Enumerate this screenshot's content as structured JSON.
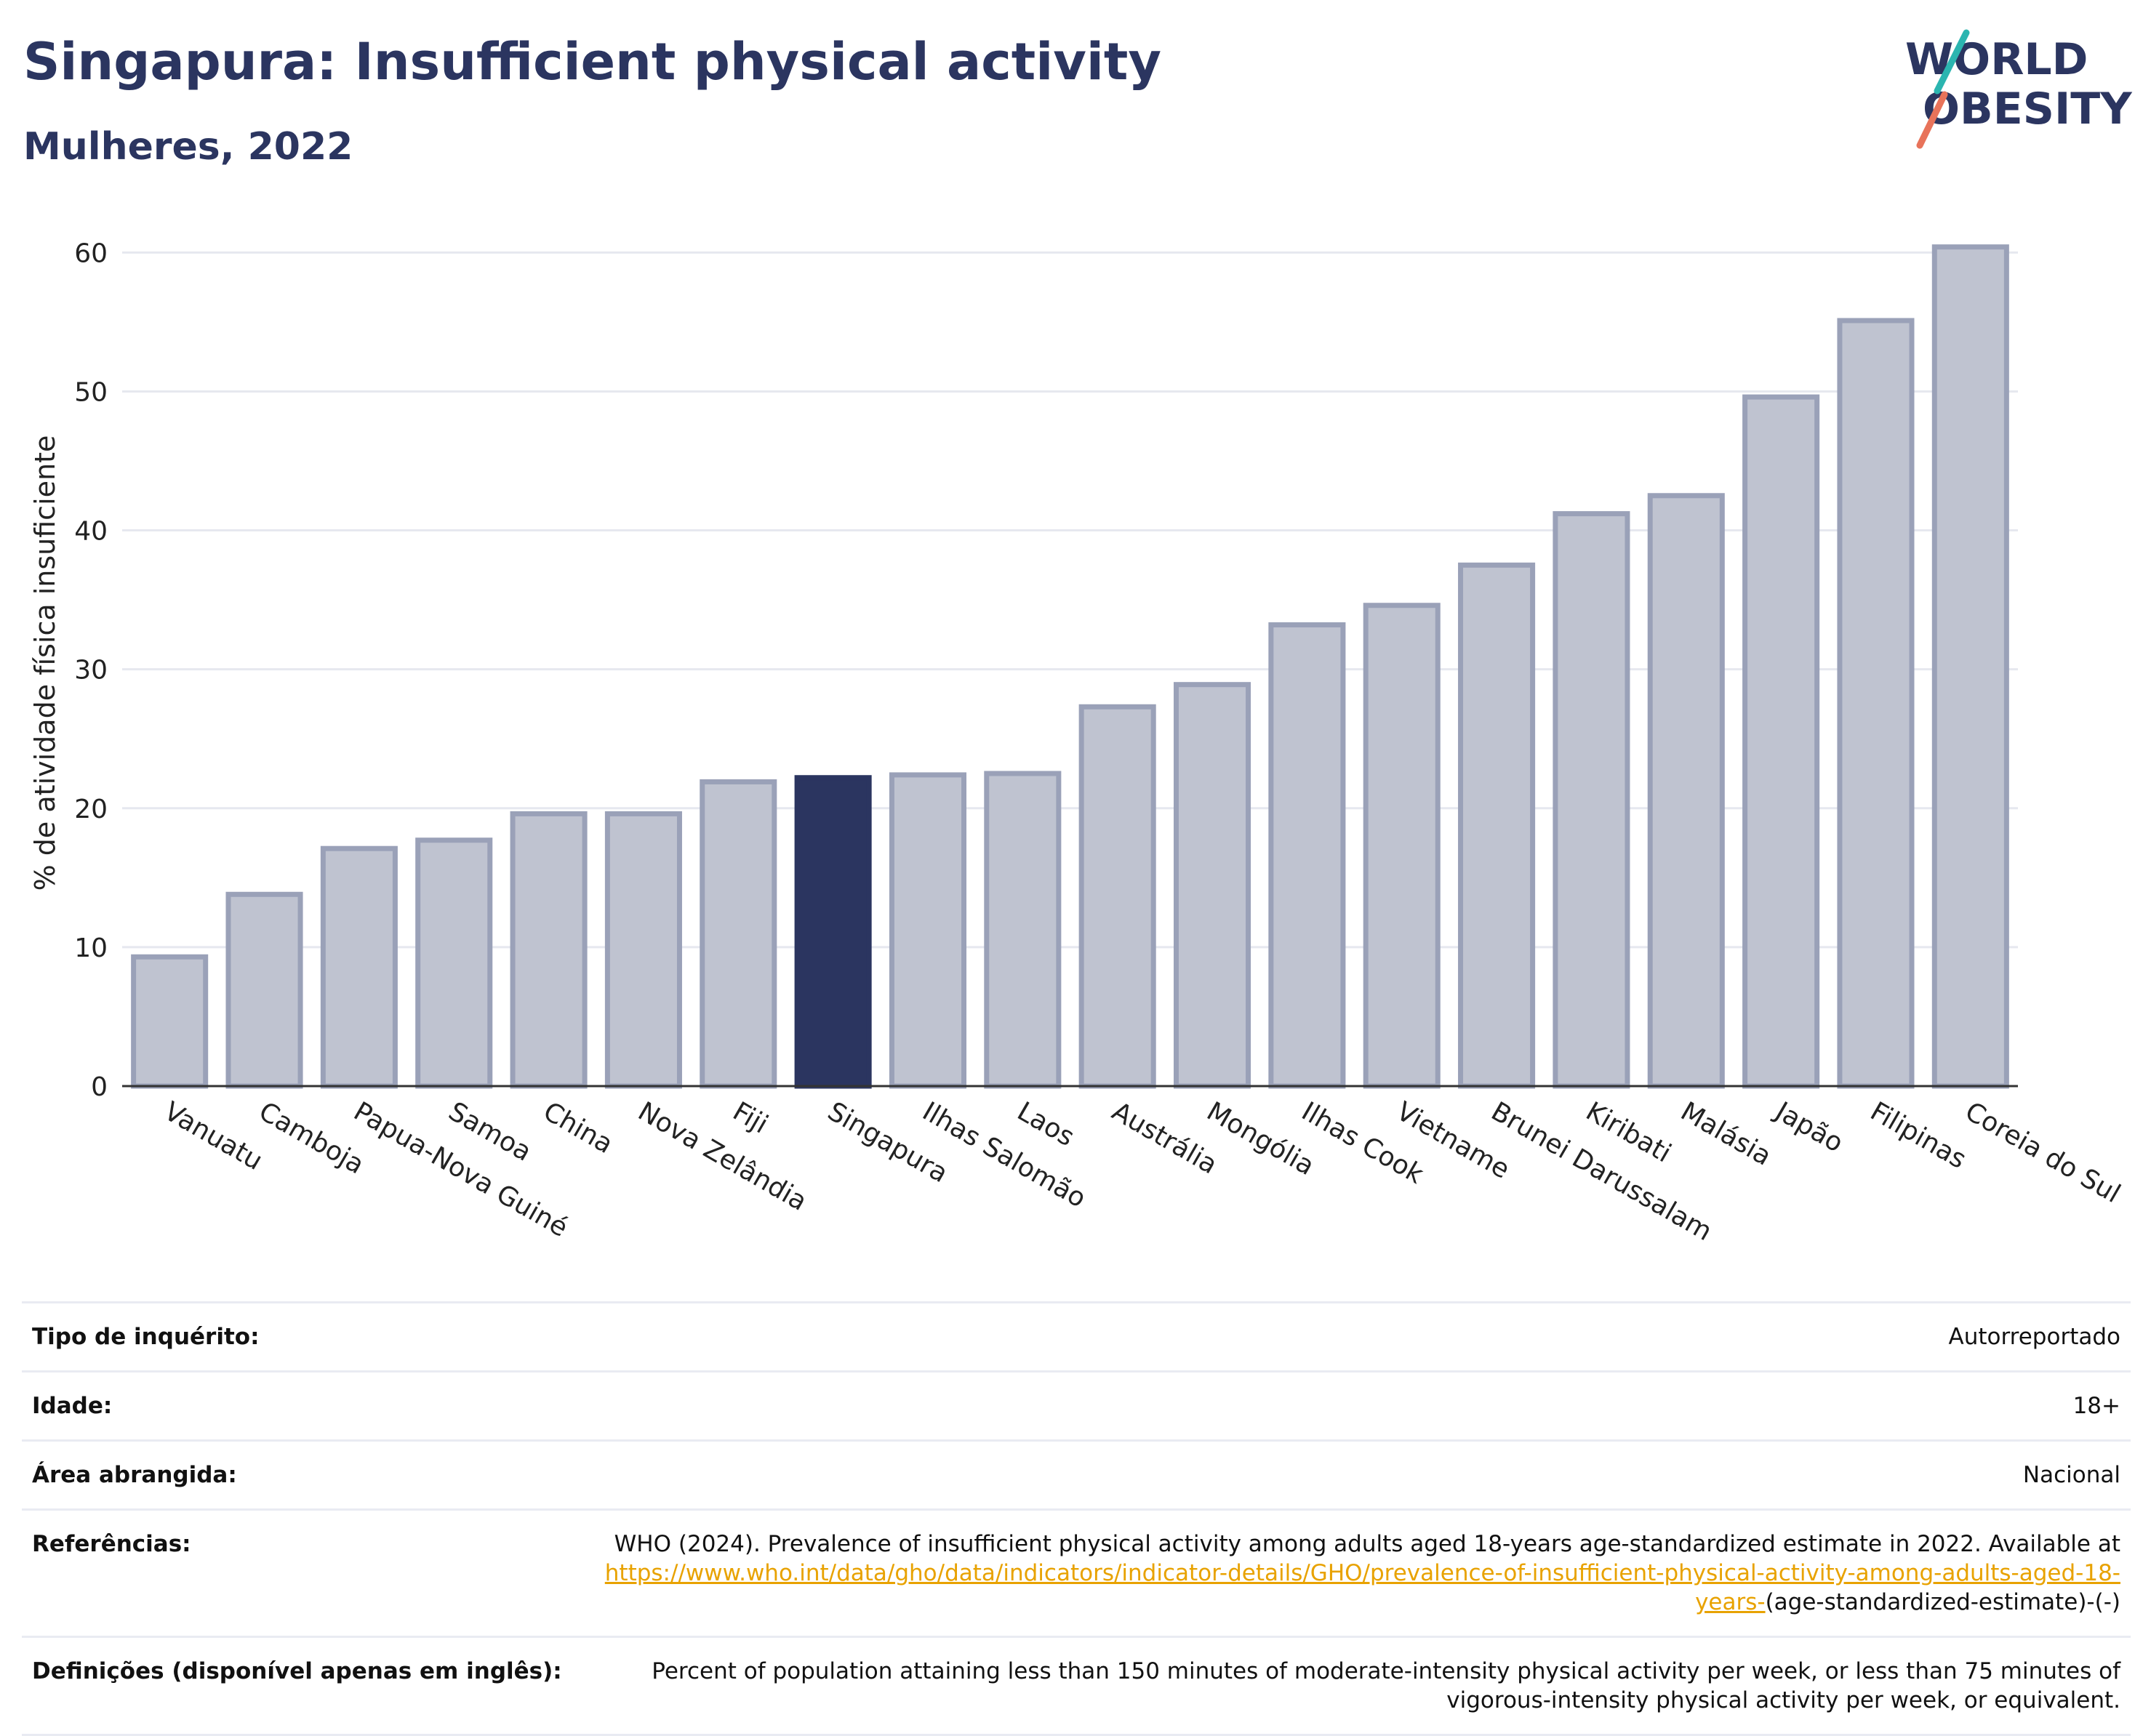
{
  "header": {
    "title": "Singapura: Insufficient physical activity",
    "subtitle": "Mulheres, 2022"
  },
  "logo": {
    "line1": "WORLD",
    "line2": "OBESITY"
  },
  "colors": {
    "highlight": "#2b3560",
    "bar_fill": "#bfc3d0",
    "bar_edge": "#9aa1b8",
    "grid": "#e6e8ef",
    "accent_teal": "#2bb5b0",
    "accent_red": "#e8735a",
    "link": "#e8a200"
  },
  "chart_data": {
    "type": "bar",
    "ylabel": "% de atividade física insuficiente",
    "ylim": [
      0,
      63
    ],
    "yticks": [
      0,
      10,
      20,
      30,
      40,
      50,
      60
    ],
    "grid": true,
    "highlight": "Singapura",
    "categories": [
      "Vanuatu",
      "Camboja",
      "Papua-Nova Guiné",
      "Samoa",
      "China",
      "Nova Zelândia",
      "Fiji",
      "Singapura",
      "Ilhas Salomão",
      "Laos",
      "Austrália",
      "Mongólia",
      "Ilhas Cook",
      "Vietname",
      "Brunei Darussalam",
      "Kiribati",
      "Malásia",
      "Japão",
      "Filipinas",
      "Coreia do Sul"
    ],
    "values": [
      9.3,
      13.8,
      17.1,
      17.7,
      19.6,
      19.6,
      21.9,
      22.2,
      22.4,
      22.5,
      27.3,
      28.9,
      33.2,
      34.6,
      37.5,
      41.2,
      42.5,
      49.6,
      55.1,
      60.4
    ]
  },
  "info": {
    "rows": [
      {
        "label": "Tipo de inquérito:",
        "value": "Autorreportado"
      },
      {
        "label": "Idade:",
        "value": "18+"
      },
      {
        "label": "Área abrangida:",
        "value": "Nacional"
      }
    ],
    "references": {
      "label": "Referências:",
      "text": "WHO (2024). Prevalence of insufficient physical activity among adults aged 18-years age-standardized estimate in 2022. Available at",
      "link": "https://www.who.int/data/gho/data/indicators/indicator-details/GHO/prevalence-of-insufficient-physical-activity-among-adults-aged-18-years-",
      "suffix": "(age-standardized-estimate)-(-)"
    },
    "definitions": {
      "label": "Definições (disponível apenas em inglês):",
      "text": "Percent of population attaining less than 150 minutes of moderate-intensity physical activity per week, or less than 75 minutes of vigorous-intensity physical activity per week, or equivalent."
    }
  }
}
